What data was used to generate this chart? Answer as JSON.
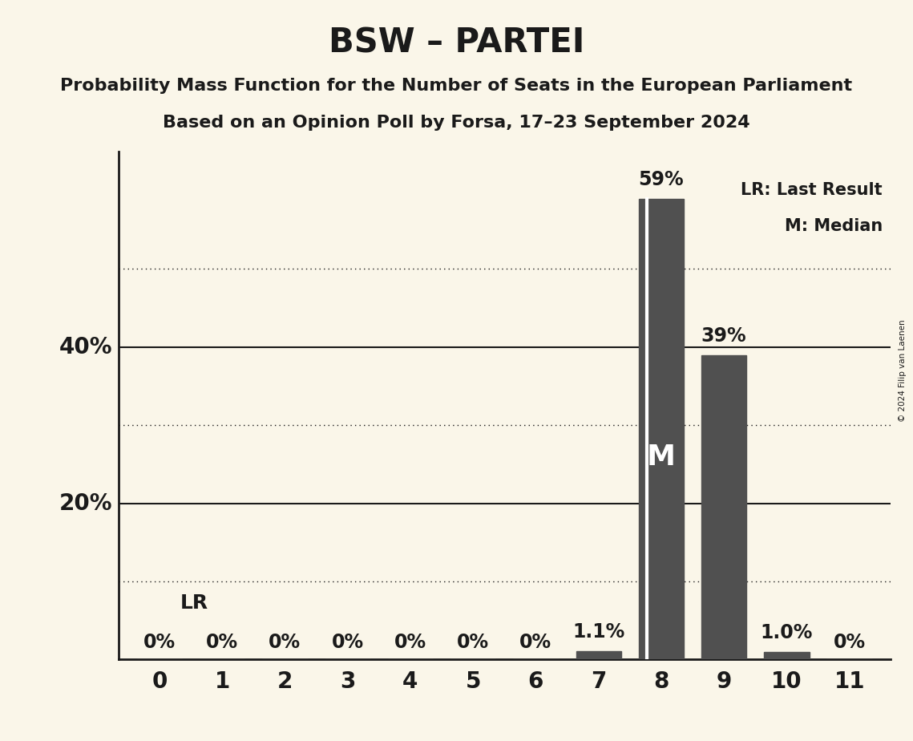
{
  "title": "BSW – PARTEI",
  "subtitle1": "Probability Mass Function for the Number of Seats in the European Parliament",
  "subtitle2": "Based on an Opinion Poll by Forsa, 17–23 September 2024",
  "copyright": "© 2024 Filip van Laenen",
  "categories": [
    0,
    1,
    2,
    3,
    4,
    5,
    6,
    7,
    8,
    9,
    10,
    11
  ],
  "values": [
    0.0,
    0.0,
    0.0,
    0.0,
    0.0,
    0.0,
    0.0,
    1.1,
    59.0,
    39.0,
    1.0,
    0.0
  ],
  "bar_color": "#505050",
  "background_color": "#faf6e9",
  "text_color": "#1a1a1a",
  "label_texts": [
    "0%",
    "0%",
    "0%",
    "0%",
    "0%",
    "0%",
    "0%",
    "1.1%",
    "59%",
    "39%",
    "1.0%",
    "0%"
  ],
  "median_bar_idx": 8,
  "ylim": [
    0,
    65
  ],
  "dotted_lines": [
    10,
    30,
    50
  ],
  "solid_lines": [
    20,
    40
  ],
  "ytick_vals": [
    20,
    40
  ],
  "ytick_labels": [
    "20%",
    "40%"
  ],
  "legend_lr": "LR: Last Result",
  "legend_m": "M: Median",
  "title_fontsize": 30,
  "subtitle_fontsize": 16,
  "axis_fontsize": 20,
  "bar_label_fontsize": 17,
  "m_fontsize": 26,
  "lr_label_fontsize": 18
}
